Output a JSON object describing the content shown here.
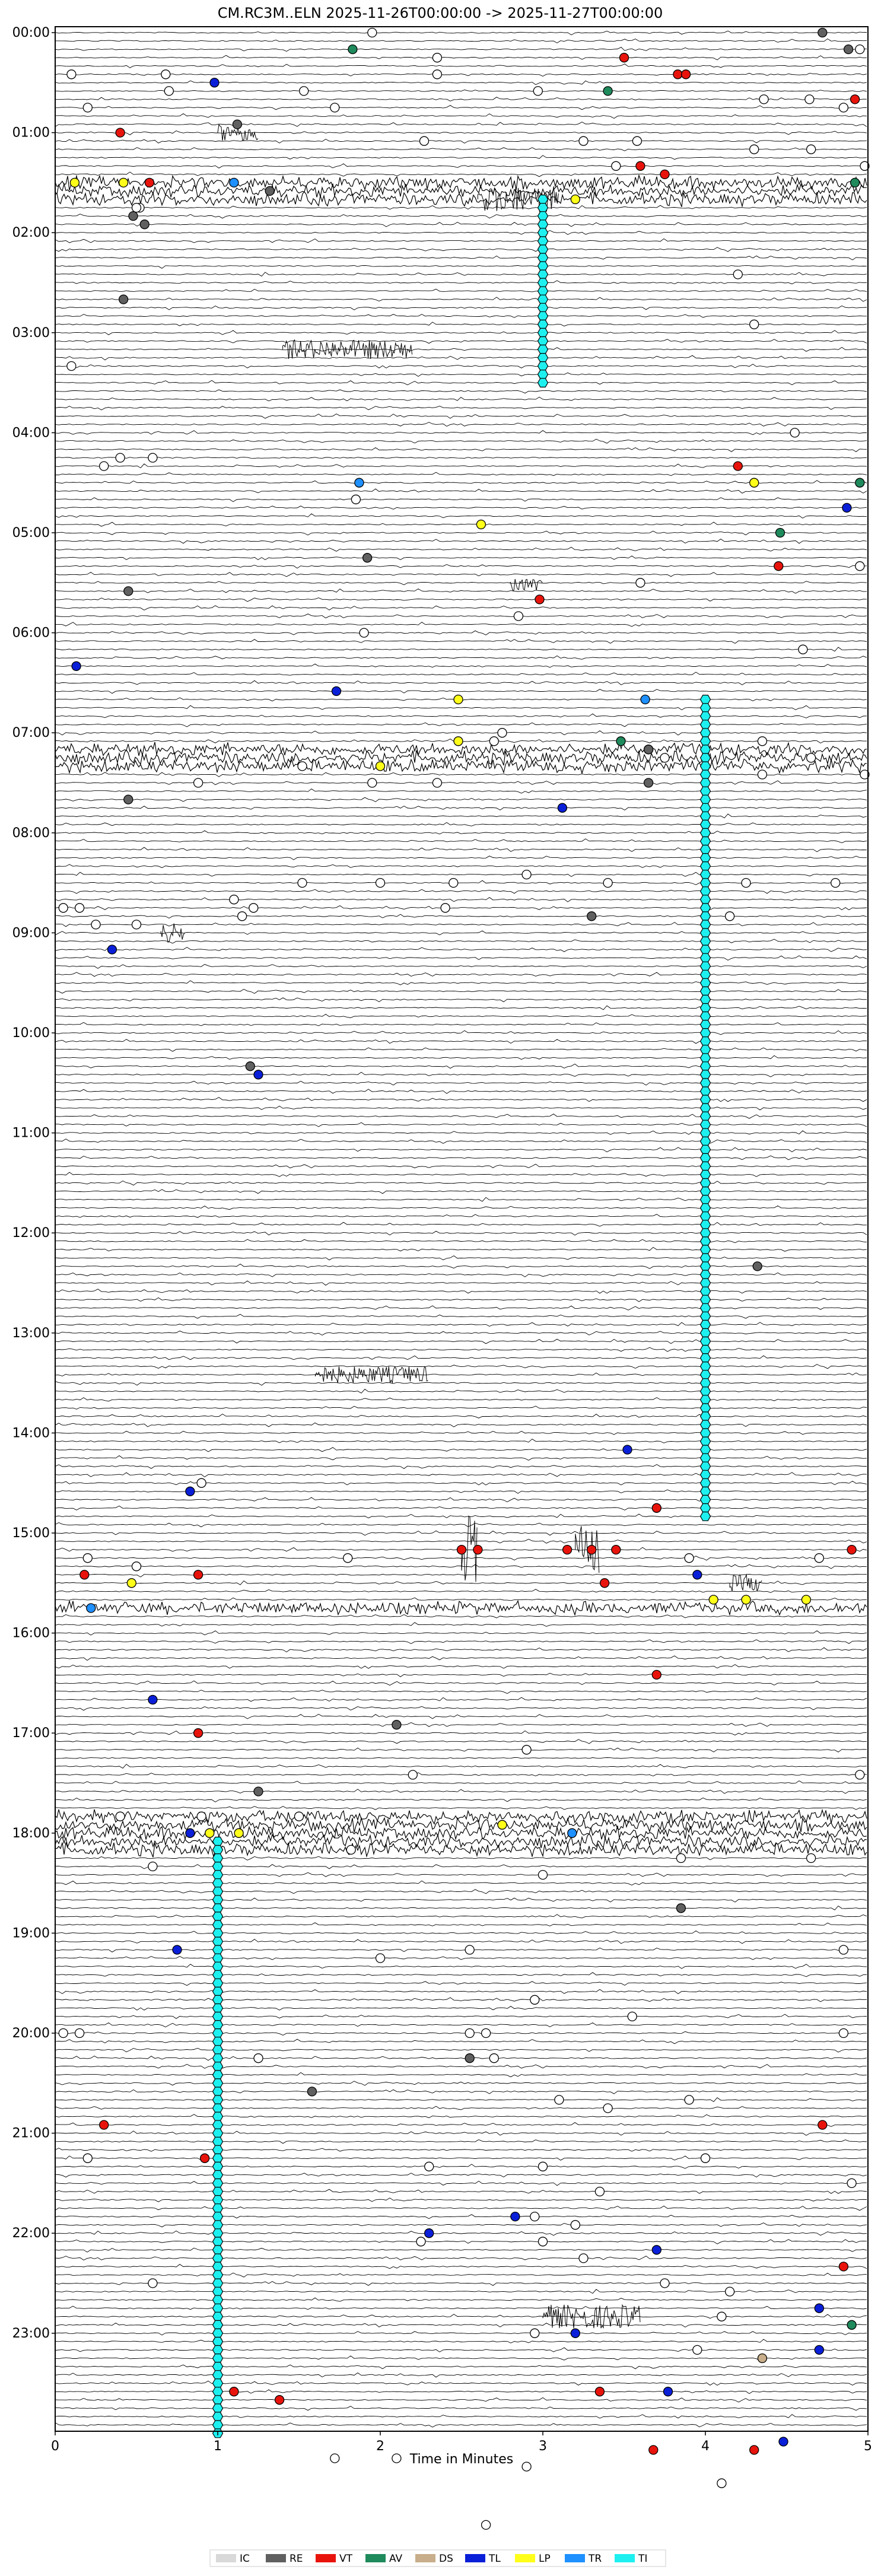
{
  "chart_data": {
    "type": "scatter",
    "title": "CM.RC3M..ELN  2025-11-26T00:00:00 -> 2025-11-27T00:00:00",
    "xlabel": "Time in Minutes",
    "ylabel": "",
    "xlim": [
      0,
      5
    ],
    "x_ticks": [
      "0",
      "1",
      "2",
      "3",
      "4",
      "5"
    ],
    "y_ticks": [
      "00:00",
      "01:00",
      "02:00",
      "03:00",
      "04:00",
      "05:00",
      "06:00",
      "07:00",
      "08:00",
      "09:00",
      "10:00",
      "11:00",
      "12:00",
      "13:00",
      "14:00",
      "15:00",
      "16:00",
      "17:00",
      "18:00",
      "19:00",
      "20:00",
      "21:00",
      "22:00",
      "23:00"
    ],
    "rows_per_hour": 12,
    "legend": {
      "placement": "bottom-center",
      "entries": [
        {
          "label": "IC",
          "color": "#d9d9d9"
        },
        {
          "label": "RE",
          "color": "#606060"
        },
        {
          "label": "VT",
          "color": "#e8140c"
        },
        {
          "label": "AV",
          "color": "#1f8a5c"
        },
        {
          "label": "DS",
          "color": "#c8ae8a"
        },
        {
          "label": "TL",
          "color": "#0a1fd8"
        },
        {
          "label": "LP",
          "color": "#ffff1a"
        },
        {
          "label": "TR",
          "color": "#1e90ff"
        },
        {
          "label": "TI",
          "color": "#1ef0f0"
        }
      ]
    },
    "series": [
      {
        "name": "IC",
        "points": [
          [
            1.95,
            0
          ],
          [
            4.95,
            2
          ],
          [
            2.35,
            3
          ],
          [
            0.1,
            5
          ],
          [
            0.68,
            5
          ],
          [
            2.35,
            5
          ],
          [
            0.7,
            7
          ],
          [
            1.53,
            7
          ],
          [
            2.97,
            7
          ],
          [
            4.36,
            8
          ],
          [
            4.64,
            8
          ],
          [
            0.2,
            9
          ],
          [
            1.72,
            9
          ],
          [
            4.85,
            9
          ],
          [
            2.27,
            13
          ],
          [
            3.25,
            13
          ],
          [
            3.58,
            13
          ],
          [
            4.3,
            14
          ],
          [
            4.65,
            14
          ],
          [
            4.98,
            16
          ],
          [
            0.52,
            21
          ],
          [
            0.5,
            21
          ],
          [
            3.45,
            16
          ],
          [
            4.2,
            29
          ],
          [
            4.3,
            35
          ],
          [
            0.1,
            40
          ],
          [
            4.55,
            48
          ],
          [
            0.4,
            51
          ],
          [
            0.6,
            51
          ],
          [
            0.3,
            52
          ],
          [
            1.85,
            56
          ],
          [
            4.95,
            64
          ],
          [
            2.85,
            70
          ],
          [
            3.6,
            66
          ],
          [
            1.9,
            72
          ],
          [
            4.6,
            74
          ],
          [
            2.75,
            84
          ],
          [
            2.7,
            85
          ],
          [
            4.35,
            85
          ],
          [
            3.65,
            86
          ],
          [
            3.75,
            87
          ],
          [
            4.65,
            87
          ],
          [
            1.52,
            88
          ],
          [
            4.98,
            89
          ],
          [
            0.88,
            90
          ],
          [
            1.95,
            90
          ],
          [
            2.35,
            90
          ],
          [
            4.35,
            89
          ],
          [
            1.52,
            102
          ],
          [
            2.0,
            102
          ],
          [
            2.45,
            102
          ],
          [
            2.9,
            101
          ],
          [
            3.4,
            102
          ],
          [
            4.25,
            102
          ],
          [
            4.8,
            102
          ],
          [
            1.1,
            104
          ],
          [
            1.22,
            105
          ],
          [
            0.05,
            105
          ],
          [
            0.15,
            105
          ],
          [
            2.4,
            105
          ],
          [
            4.15,
            106
          ],
          [
            0.25,
            107
          ],
          [
            0.5,
            107
          ],
          [
            1.15,
            106
          ],
          [
            0.9,
            174
          ],
          [
            0.5,
            184
          ],
          [
            0.2,
            183
          ],
          [
            1.8,
            183
          ],
          [
            3.9,
            183
          ],
          [
            4.7,
            183
          ],
          [
            2.9,
            206
          ],
          [
            2.2,
            209
          ],
          [
            4.95,
            209
          ],
          [
            0.4,
            214
          ],
          [
            0.9,
            214
          ],
          [
            1.5,
            214
          ],
          [
            1.82,
            218
          ],
          [
            3.85,
            219
          ],
          [
            0.6,
            220
          ],
          [
            3.0,
            221
          ],
          [
            4.65,
            219
          ],
          [
            2.0,
            231
          ],
          [
            2.55,
            230
          ],
          [
            4.85,
            230
          ],
          [
            4.85,
            240
          ],
          [
            0.05,
            240
          ],
          [
            0.15,
            240
          ],
          [
            2.55,
            240
          ],
          [
            2.65,
            240
          ],
          [
            2.95,
            236
          ],
          [
            3.55,
            238
          ],
          [
            1.25,
            243
          ],
          [
            2.7,
            243
          ],
          [
            3.1,
            248
          ],
          [
            3.4,
            249
          ],
          [
            3.9,
            248
          ],
          [
            0.2,
            255
          ],
          [
            2.3,
            256
          ],
          [
            3.0,
            256
          ],
          [
            4.0,
            255
          ],
          [
            3.35,
            259
          ],
          [
            4.9,
            258
          ],
          [
            2.95,
            262
          ],
          [
            3.2,
            263
          ],
          [
            2.25,
            265
          ],
          [
            3.0,
            265
          ],
          [
            3.25,
            267
          ],
          [
            3.75,
            270
          ],
          [
            0.6,
            270
          ],
          [
            4.15,
            271
          ],
          [
            4.1,
            274
          ],
          [
            2.95,
            276
          ],
          [
            3.95,
            278
          ],
          [
            1.72,
            291
          ],
          [
            2.1,
            291
          ],
          [
            2.9,
            292
          ],
          [
            4.1,
            294
          ],
          [
            2.65,
            299
          ]
        ]
      },
      {
        "name": "RE",
        "points": [
          [
            4.72,
            0
          ],
          [
            4.88,
            2
          ],
          [
            1.12,
            11
          ],
          [
            4.32,
            148
          ],
          [
            1.32,
            19
          ],
          [
            0.48,
            22
          ],
          [
            0.55,
            23
          ],
          [
            0.42,
            32
          ],
          [
            0.45,
            67
          ],
          [
            1.92,
            63
          ],
          [
            1.2,
            124
          ],
          [
            0.45,
            92
          ],
          [
            3.65,
            86
          ],
          [
            3.65,
            90
          ],
          [
            3.3,
            106
          ],
          [
            2.1,
            203
          ],
          [
            2.55,
            243
          ],
          [
            1.58,
            247
          ],
          [
            1.25,
            211
          ],
          [
            1.0,
            277
          ],
          [
            3.85,
            225
          ]
        ]
      },
      {
        "name": "VT",
        "points": [
          [
            3.5,
            3
          ],
          [
            3.83,
            5
          ],
          [
            3.88,
            5
          ],
          [
            4.92,
            8
          ],
          [
            0.4,
            12
          ],
          [
            3.6,
            16
          ],
          [
            3.75,
            17
          ],
          [
            0.58,
            18
          ],
          [
            4.2,
            52
          ],
          [
            4.45,
            64
          ],
          [
            2.98,
            68
          ],
          [
            0.18,
            185
          ],
          [
            0.88,
            185
          ],
          [
            2.5,
            182
          ],
          [
            2.6,
            182
          ],
          [
            3.15,
            182
          ],
          [
            3.3,
            182
          ],
          [
            3.45,
            182
          ],
          [
            3.7,
            177
          ],
          [
            3.38,
            186
          ],
          [
            4.9,
            182
          ],
          [
            3.7,
            197
          ],
          [
            0.88,
            204
          ],
          [
            4.72,
            251
          ],
          [
            0.3,
            251
          ],
          [
            0.92,
            255
          ],
          [
            3.35,
            283
          ],
          [
            1.1,
            283
          ],
          [
            1.38,
            284
          ],
          [
            4.3,
            290
          ],
          [
            4.85,
            268
          ],
          [
            3.68,
            290
          ]
        ]
      },
      {
        "name": "AV",
        "points": [
          [
            1.83,
            2
          ],
          [
            3.4,
            7
          ],
          [
            4.92,
            18
          ],
          [
            4.46,
            60
          ],
          [
            3.48,
            85
          ],
          [
            4.95,
            54
          ],
          [
            4.9,
            275
          ]
        ]
      },
      {
        "name": "DS",
        "points": [
          [
            4.35,
            279
          ]
        ]
      },
      {
        "name": "TL",
        "points": [
          [
            0.98,
            6
          ],
          [
            1.73,
            79
          ],
          [
            0.13,
            76
          ],
          [
            3.12,
            93
          ],
          [
            0.35,
            110
          ],
          [
            1.25,
            125
          ],
          [
            3.52,
            170
          ],
          [
            0.83,
            175
          ],
          [
            3.95,
            185
          ],
          [
            0.6,
            200
          ],
          [
            0.83,
            216
          ],
          [
            0.75,
            230
          ],
          [
            2.83,
            262
          ],
          [
            2.3,
            264
          ],
          [
            3.7,
            266
          ],
          [
            4.7,
            273
          ],
          [
            3.2,
            276
          ],
          [
            4.7,
            278
          ],
          [
            3.77,
            283
          ],
          [
            4.48,
            289
          ],
          [
            4.87,
            57
          ]
        ]
      },
      {
        "name": "LP",
        "points": [
          [
            0.12,
            18
          ],
          [
            0.42,
            18
          ],
          [
            3.2,
            20
          ],
          [
            4.3,
            54
          ],
          [
            2.62,
            59
          ],
          [
            2.48,
            80
          ],
          [
            2.48,
            85
          ],
          [
            2.0,
            88
          ],
          [
            4.05,
            188
          ],
          [
            4.25,
            188
          ],
          [
            4.62,
            188
          ],
          [
            0.47,
            186
          ],
          [
            2.75,
            215
          ],
          [
            0.95,
            216
          ],
          [
            1.13,
            216
          ]
        ]
      },
      {
        "name": "TR",
        "points": [
          [
            1.1,
            18
          ],
          [
            1.87,
            54
          ],
          [
            3.63,
            80
          ],
          [
            0.22,
            189
          ],
          [
            3.18,
            216
          ]
        ]
      },
      {
        "name": "TI",
        "tracks": [
          {
            "x": 3.0,
            "from_row": 20,
            "to_row": 42
          },
          {
            "x": 4.0,
            "from_row": 80,
            "to_row": 178
          },
          {
            "x": 1.0,
            "from_row": 217,
            "to_row": 288
          }
        ]
      }
    ]
  }
}
